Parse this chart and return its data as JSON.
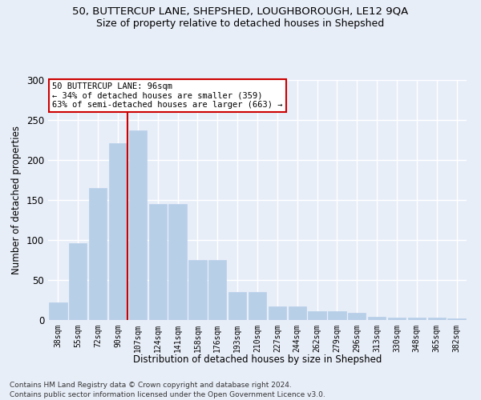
{
  "title_line1": "50, BUTTERCUP LANE, SHEPSHED, LOUGHBOROUGH, LE12 9QA",
  "title_line2": "Size of property relative to detached houses in Shepshed",
  "xlabel": "Distribution of detached houses by size in Shepshed",
  "ylabel": "Number of detached properties",
  "categories": [
    "38sqm",
    "55sqm",
    "72sqm",
    "90sqm",
    "107sqm",
    "124sqm",
    "141sqm",
    "158sqm",
    "176sqm",
    "193sqm",
    "210sqm",
    "227sqm",
    "244sqm",
    "262sqm",
    "279sqm",
    "296sqm",
    "313sqm",
    "330sqm",
    "348sqm",
    "365sqm",
    "382sqm"
  ],
  "values": [
    22,
    96,
    165,
    221,
    237,
    145,
    145,
    75,
    75,
    35,
    35,
    17,
    17,
    11,
    11,
    9,
    4,
    3,
    3,
    3,
    2
  ],
  "bar_color": "#b8cfe8",
  "bar_edge_color": "#b8cfe8",
  "background_color": "#e8eef8",
  "grid_color": "#ffffff",
  "vline_color": "#cc0000",
  "annotation_text": "50 BUTTERCUP LANE: 96sqm\n← 34% of detached houses are smaller (359)\n63% of semi-detached houses are larger (663) →",
  "annotation_box_color": "#ffffff",
  "annotation_box_edge": "#cc0000",
  "ylim": [
    0,
    300
  ],
  "yticks": [
    0,
    50,
    100,
    150,
    200,
    250,
    300
  ],
  "footer_line1": "Contains HM Land Registry data © Crown copyright and database right 2024.",
  "footer_line2": "Contains public sector information licensed under the Open Government Licence v3.0."
}
